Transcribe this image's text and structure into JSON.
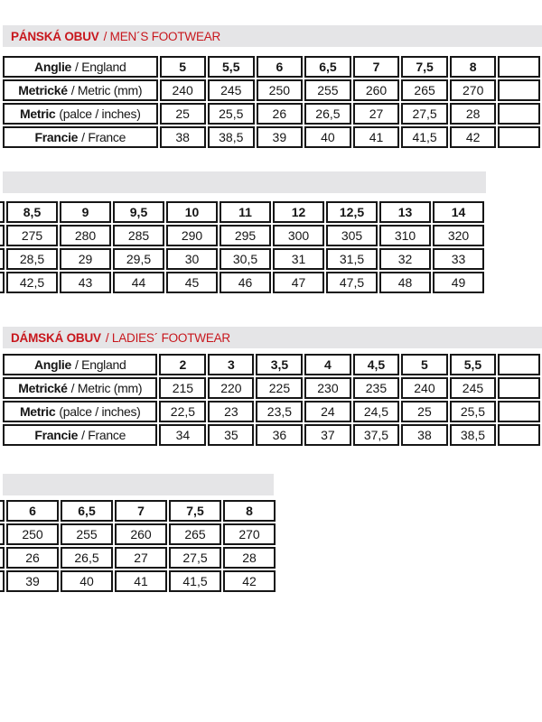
{
  "theme": {
    "accent_red": "#c8171d",
    "bar_gray": "#e5e5e7",
    "border_black": "#161616"
  },
  "sections": [
    {
      "id": "mens",
      "header": {
        "title_bold": "PÁNSKÁ OBUV",
        "title_rest": "/ MEN´S FOOTWEAR"
      },
      "table_a": {
        "rows": [
          {
            "label_bold": "Anglie",
            "label_rest": "/ England",
            "cells": [
              "5",
              "5,5",
              "6",
              "6,5",
              "7",
              "7,5",
              "8"
            ]
          },
          {
            "label_bold": "Metrické",
            "label_rest": "/ Metric (mm)",
            "cells": [
              "240",
              "245",
              "250",
              "255",
              "260",
              "265",
              "270"
            ]
          },
          {
            "label_bold": "Metric",
            "label_rest": "(palce / inches)",
            "cells": [
              "25",
              "25,5",
              "26",
              "26,5",
              "27",
              "27,5",
              "28"
            ]
          },
          {
            "label_bold": "Francie",
            "label_rest": "/ France",
            "cells": [
              "38",
              "38,5",
              "39",
              "40",
              "41",
              "41,5",
              "42"
            ]
          }
        ]
      },
      "table_b": {
        "rows": [
          {
            "cells": [
              "8,5",
              "9",
              "9,5",
              "10",
              "11",
              "12",
              "12,5",
              "13",
              "14"
            ]
          },
          {
            "cells": [
              "275",
              "280",
              "285",
              "290",
              "295",
              "300",
              "305",
              "310",
              "320"
            ]
          },
          {
            "cells": [
              "28,5",
              "29",
              "29,5",
              "30",
              "30,5",
              "31",
              "31,5",
              "32",
              "33"
            ]
          },
          {
            "cells": [
              "42,5",
              "43",
              "44",
              "45",
              "46",
              "47",
              "47,5",
              "48",
              "49"
            ]
          }
        ]
      }
    },
    {
      "id": "ladies",
      "header": {
        "title_bold": "DÁMSKÁ OBUV",
        "title_rest": "/ LADIES´ FOOTWEAR"
      },
      "table_a": {
        "rows": [
          {
            "label_bold": "Anglie",
            "label_rest": "/ England",
            "cells": [
              "2",
              "3",
              "3,5",
              "4",
              "4,5",
              "5",
              "5,5"
            ]
          },
          {
            "label_bold": "Metrické",
            "label_rest": "/ Metric (mm)",
            "cells": [
              "215",
              "220",
              "225",
              "230",
              "235",
              "240",
              "245"
            ]
          },
          {
            "label_bold": "Metric",
            "label_rest": "(palce / inches)",
            "cells": [
              "22,5",
              "23",
              "23,5",
              "24",
              "24,5",
              "25",
              "25,5"
            ]
          },
          {
            "label_bold": "Francie",
            "label_rest": "/ France",
            "cells": [
              "34",
              "35",
              "36",
              "37",
              "37,5",
              "38",
              "38,5"
            ]
          }
        ]
      },
      "table_b": {
        "rows": [
          {
            "cells": [
              "6",
              "6,5",
              "7",
              "7,5",
              "8"
            ]
          },
          {
            "cells": [
              "250",
              "255",
              "260",
              "265",
              "270"
            ]
          },
          {
            "cells": [
              "26",
              "26,5",
              "27",
              "27,5",
              "28"
            ]
          },
          {
            "cells": [
              "39",
              "40",
              "41",
              "41,5",
              "42"
            ]
          }
        ]
      }
    }
  ]
}
